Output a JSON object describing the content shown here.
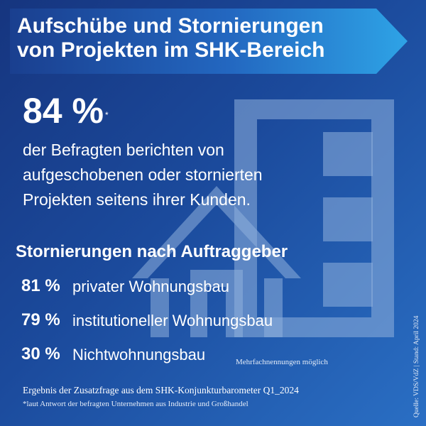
{
  "title": "Aufschübe und Stornierungen von Projekten im SHK-Bereich",
  "headline": {
    "value": "84 %",
    "footnote_mark": "*",
    "description": "der Befragten berichten von aufgeschobenen oder stornierten Projekten seitens ihrer Kunden."
  },
  "breakdown": {
    "title": "Stornierungen nach Auftraggeber",
    "items": [
      {
        "percent": "81 %",
        "label": "privater Wohnungsbau"
      },
      {
        "percent": "79 %",
        "label": "institutioneller Wohnungsbau"
      },
      {
        "percent": "30 %",
        "label": "Nichtwohnungsbau"
      }
    ],
    "note": "Mehrfachnennungen möglich"
  },
  "footer": {
    "main": "Ergebnis der Zusatzfrage aus dem SHK-Konjunkturbarometer Q1_2024",
    "footnote": "*laut Antwort der befragten Unternehmen aus Industrie und Großhandel"
  },
  "source": "Quelle: VDS/VdZ | Stand: April 2024",
  "colors": {
    "background_dark": "#16357f",
    "background_light": "#2a6fc4",
    "banner_start": "#1a3f8f",
    "banner_end": "#2ea3e6",
    "text": "#ffffff"
  },
  "icons": {
    "background": "building-and-house-icon"
  }
}
